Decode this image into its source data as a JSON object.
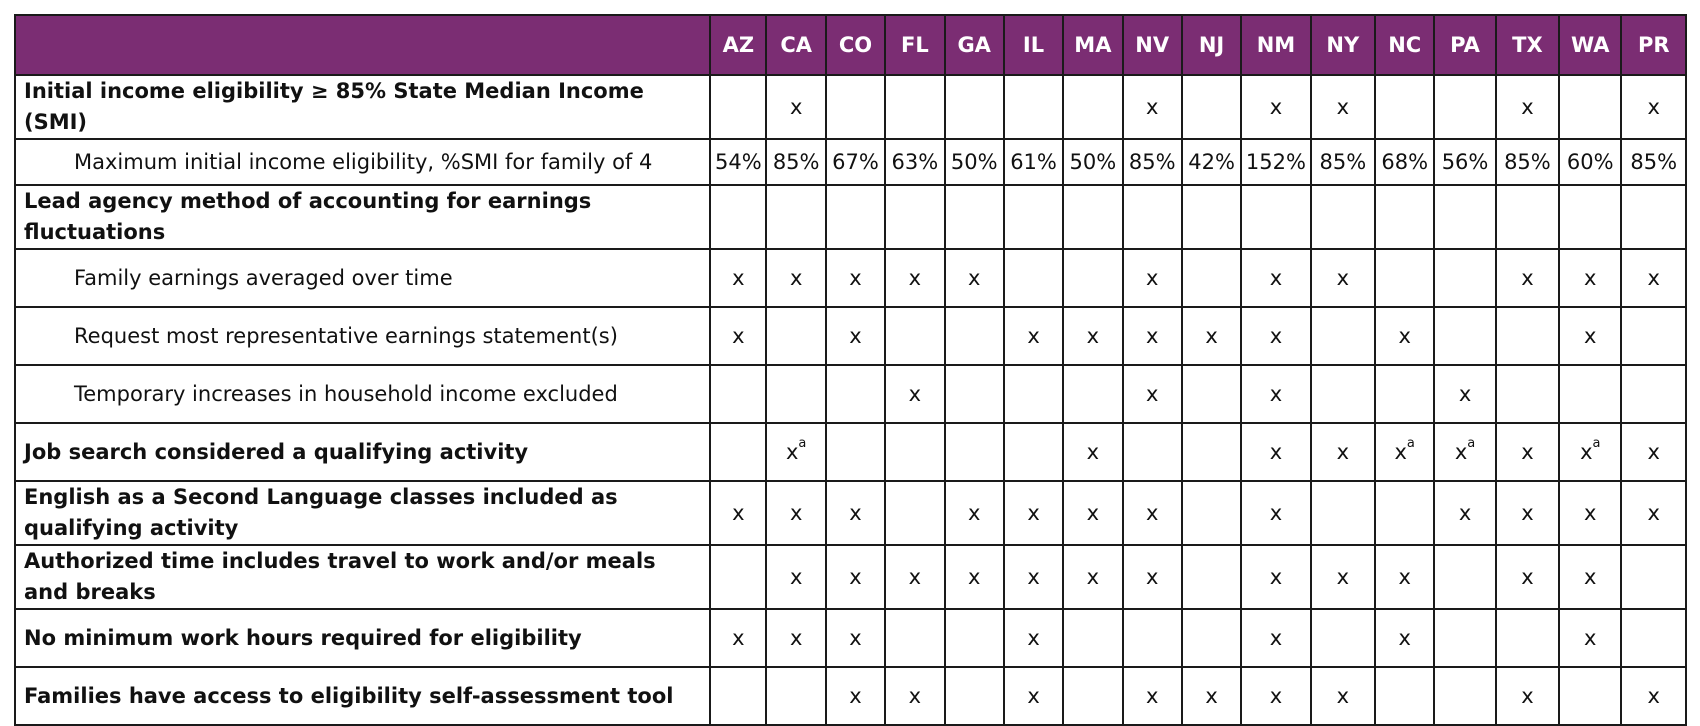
{
  "columns": [
    "AZ",
    "CA",
    "CO",
    "FL",
    "GA",
    "IL",
    "MA",
    "NV",
    "NJ",
    "NM",
    "NY",
    "NC",
    "PA",
    "TX",
    "WA",
    "PR"
  ],
  "rows": [
    {
      "label": "Initial income eligibility ≥ 85% State Median Income (SMI)",
      "style": "bold",
      "height": 46,
      "cells": [
        "",
        "x",
        "",
        "",
        "",
        "",
        "",
        "x",
        "",
        "x",
        "x",
        "",
        "",
        "x",
        "",
        "x"
      ]
    },
    {
      "label": "Maximum initial income eligibility, %SMI for family of 4",
      "style": "indent",
      "height": 46,
      "cells": [
        "54%",
        "85%",
        "67%",
        "63%",
        "50%",
        "61%",
        "50%",
        "85%",
        "42%",
        "152%",
        "85%",
        "68%",
        "56%",
        "85%",
        "60%",
        "85%"
      ]
    },
    {
      "label": "Lead agency method of accounting for earnings fluctuations",
      "style": "bold",
      "height": 64,
      "cells": [
        "",
        "",
        "",
        "",
        "",
        "",
        "",
        "",
        "",
        "",
        "",
        "",
        "",
        "",
        "",
        ""
      ]
    },
    {
      "label": "Family earnings averaged over time",
      "style": "indent",
      "height": 58,
      "cells": [
        "x",
        "x",
        "x",
        "x",
        "x",
        "",
        "",
        "x",
        "",
        "x",
        "x",
        "",
        "",
        "x",
        "x",
        "x"
      ]
    },
    {
      "label": "Request most representative earnings statement(s)",
      "style": "indent",
      "height": 58,
      "cells": [
        "x",
        "",
        "x",
        "",
        "",
        "x",
        "x",
        "x",
        "x",
        "x",
        "",
        "x",
        "",
        "",
        "x",
        ""
      ]
    },
    {
      "label": "Temporary increases in household income excluded",
      "style": "indent",
      "height": 58,
      "cells": [
        "",
        "",
        "",
        "x",
        "",
        "",
        "",
        "x",
        "",
        "x",
        "",
        "",
        "x",
        "",
        "",
        ""
      ]
    },
    {
      "label": "Job search considered a qualifying activity",
      "style": "bold",
      "height": 58,
      "cells": [
        "",
        "x|a",
        "",
        "",
        "",
        "",
        "x",
        "",
        "",
        "x",
        "x",
        "x|a",
        "x|a",
        "x",
        "x|a",
        "x"
      ]
    },
    {
      "label": "English as a Second Language classes included as qualifying activity",
      "style": "bold",
      "height": 64,
      "cells": [
        "x",
        "x",
        "x",
        "",
        "x",
        "x",
        "x",
        "x",
        "",
        "x",
        "",
        "",
        "x",
        "x",
        "x",
        "x"
      ]
    },
    {
      "label": "Authorized time includes travel to work and/or meals and breaks",
      "style": "bold",
      "height": 64,
      "cells": [
        "",
        "x",
        "x",
        "x",
        "x",
        "x",
        "x",
        "x",
        "",
        "x",
        "x",
        "x",
        "",
        "x",
        "x",
        ""
      ]
    },
    {
      "label": "No minimum work hours required for eligibility",
      "style": "bold",
      "height": 58,
      "cells": [
        "x",
        "x",
        "x",
        "",
        "",
        "x",
        "",
        "",
        "",
        "x",
        "",
        "x",
        "",
        "",
        "x",
        ""
      ]
    },
    {
      "label": "Families have access to eligibility self-assessment tool",
      "style": "bold",
      "height": 58,
      "cells": [
        "",
        "",
        "x",
        "x",
        "",
        "x",
        "",
        "x",
        "x",
        "x",
        "x",
        "",
        "",
        "x",
        "",
        "x"
      ]
    }
  ]
}
